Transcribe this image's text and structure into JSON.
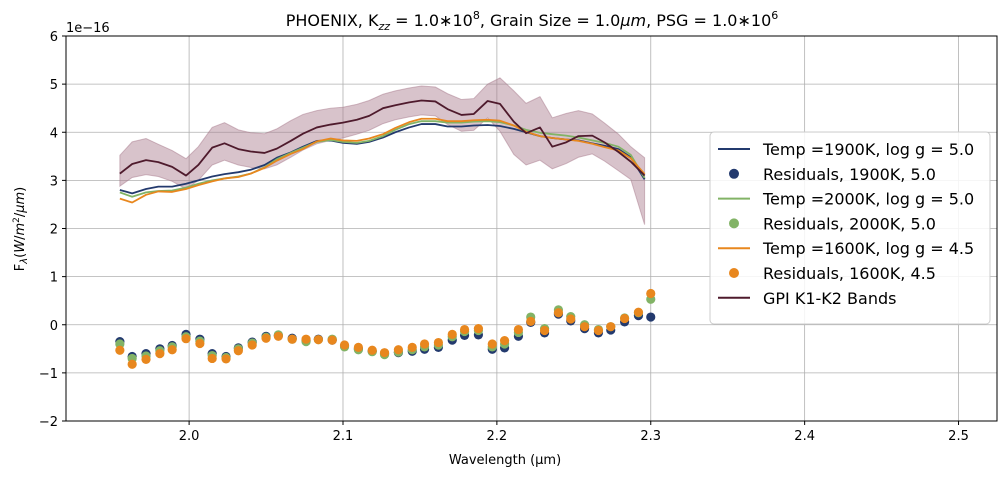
{
  "chart_data": {
    "type": "line",
    "title": "PHOENIX, K_zz = 1.0*10^8, Grain Size = 1.0μm,  PSG = 1.0*10^6",
    "title_parts": {
      "prefix": "PHOENIX, K",
      "kzz_sub": "zz",
      "kzz_value": " = 1.0",
      "kzz_times": "∗",
      "kzz_base": "10",
      "kzz_exp": "8",
      "grain_label": ", Grain Size = 1.0",
      "grain_unit": "μm",
      "psg_label": ",  PSG = 1.0",
      "psg_times": "∗",
      "psg_base": "10",
      "psg_exp": "6"
    },
    "xlabel": "Wavelength (μm)",
    "ylabel": "F_λ(W/m²/μm)",
    "ylabel_parts": {
      "base": "F",
      "sub": "λ",
      "open": "(",
      "w": "W",
      "slash1": "/",
      "m": "m",
      "sup": "2",
      "slash2": "/",
      "um": "μm",
      "close": ")"
    },
    "offset_text": "1e−16",
    "xlim": [
      1.92,
      2.525
    ],
    "ylim": [
      -2,
      6
    ],
    "xticks": [
      2.0,
      2.1,
      2.2,
      2.3,
      2.4,
      2.5
    ],
    "xtick_labels": [
      "2.0",
      "2.1",
      "2.2",
      "2.3",
      "2.4",
      "2.5"
    ],
    "yticks": [
      -2,
      -1,
      0,
      1,
      2,
      3,
      4,
      5,
      6
    ],
    "ytick_labels": [
      "−2",
      "−1",
      "0",
      "1",
      "2",
      "3",
      "4",
      "5",
      "6"
    ],
    "grid": true,
    "legend_position": "center-right",
    "x": [
      1.955,
      1.963,
      1.972,
      1.98,
      1.989,
      1.998,
      2.006,
      2.015,
      2.023,
      2.032,
      2.04,
      2.049,
      2.057,
      2.066,
      2.074,
      2.083,
      2.092,
      2.1,
      2.109,
      2.117,
      2.126,
      2.134,
      2.143,
      2.151,
      2.16,
      2.168,
      2.177,
      2.185,
      2.194,
      2.202,
      2.211,
      2.219,
      2.228,
      2.236,
      2.245,
      2.253,
      2.262,
      2.27,
      2.279,
      2.287,
      2.296
    ],
    "residual_x": [
      1.955,
      1.963,
      1.972,
      1.981,
      1.989,
      1.998,
      2.007,
      2.015,
      2.024,
      2.032,
      2.041,
      2.05,
      2.058,
      2.067,
      2.076,
      2.084,
      2.093,
      2.101,
      2.11,
      2.119,
      2.127,
      2.136,
      2.145,
      2.153,
      2.162,
      2.171,
      2.179,
      2.188,
      2.197,
      2.205,
      2.214,
      2.222,
      2.231,
      2.24,
      2.248,
      2.257,
      2.266,
      2.274,
      2.283,
      2.292,
      2.3
    ],
    "series": [
      {
        "name": "Temp =1900K, log g = 5.0",
        "kind": "line",
        "color": "#233a6e",
        "values": [
          2.8,
          2.73,
          2.82,
          2.87,
          2.87,
          2.93,
          3.0,
          3.08,
          3.13,
          3.17,
          3.22,
          3.32,
          3.47,
          3.58,
          3.7,
          3.82,
          3.83,
          3.78,
          3.76,
          3.8,
          3.89,
          4.0,
          4.1,
          4.17,
          4.17,
          4.12,
          4.12,
          4.14,
          4.15,
          4.13,
          4.07,
          4.0,
          3.92,
          3.88,
          3.85,
          3.83,
          3.77,
          3.72,
          3.65,
          3.48,
          3.02
        ]
      },
      {
        "name": "Residuals, 1900K, 5.0",
        "kind": "scatter",
        "color": "#233a6e",
        "values": [
          -0.35,
          -0.66,
          -0.6,
          -0.5,
          -0.43,
          -0.2,
          -0.3,
          -0.6,
          -0.66,
          -0.48,
          -0.36,
          -0.24,
          -0.22,
          -0.28,
          -0.33,
          -0.3,
          -0.32,
          -0.44,
          -0.5,
          -0.55,
          -0.6,
          -0.58,
          -0.55,
          -0.51,
          -0.47,
          -0.32,
          -0.22,
          -0.21,
          -0.51,
          -0.48,
          -0.24,
          0.05,
          -0.17,
          0.22,
          0.08,
          -0.08,
          -0.17,
          -0.11,
          0.06,
          0.19,
          0.16
        ]
      },
      {
        "name": "Temp =2000K, log g = 5.0",
        "kind": "line",
        "color": "#82b366",
        "values": [
          2.75,
          2.66,
          2.75,
          2.78,
          2.79,
          2.85,
          2.93,
          3.0,
          3.04,
          3.08,
          3.14,
          3.27,
          3.44,
          3.57,
          3.68,
          3.8,
          3.84,
          3.8,
          3.78,
          3.82,
          3.92,
          4.05,
          4.17,
          4.23,
          4.23,
          4.2,
          4.2,
          4.22,
          4.23,
          4.21,
          4.14,
          4.05,
          3.99,
          3.96,
          3.93,
          3.89,
          3.83,
          3.78,
          3.7,
          3.53,
          3.05
        ]
      },
      {
        "name": "Residuals, 2000K, 5.0",
        "kind": "scatter",
        "color": "#82b366",
        "values": [
          -0.4,
          -0.7,
          -0.65,
          -0.54,
          -0.46,
          -0.25,
          -0.34,
          -0.64,
          -0.68,
          -0.5,
          -0.38,
          -0.26,
          -0.21,
          -0.3,
          -0.35,
          -0.31,
          -0.3,
          -0.46,
          -0.52,
          -0.56,
          -0.62,
          -0.57,
          -0.52,
          -0.46,
          -0.42,
          -0.25,
          -0.14,
          -0.12,
          -0.46,
          -0.4,
          -0.16,
          0.16,
          -0.08,
          0.31,
          0.17,
          0.0,
          -0.1,
          -0.04,
          0.14,
          0.25,
          0.53
        ]
      },
      {
        "name": "Temp =1600K, log g = 4.5",
        "kind": "line",
        "color": "#e8871e",
        "values": [
          2.62,
          2.54,
          2.7,
          2.77,
          2.76,
          2.82,
          2.9,
          2.98,
          3.04,
          3.07,
          3.14,
          3.26,
          3.41,
          3.55,
          3.65,
          3.81,
          3.87,
          3.83,
          3.82,
          3.87,
          3.96,
          4.09,
          4.21,
          4.28,
          4.28,
          4.23,
          4.23,
          4.25,
          4.26,
          4.24,
          4.14,
          4.01,
          3.92,
          3.88,
          3.85,
          3.82,
          3.76,
          3.69,
          3.62,
          3.46,
          3.13
        ]
      },
      {
        "name": "Residuals, 1600K, 4.5",
        "kind": "scatter",
        "color": "#e8871e",
        "values": [
          -0.53,
          -0.82,
          -0.72,
          -0.6,
          -0.52,
          -0.29,
          -0.39,
          -0.7,
          -0.71,
          -0.54,
          -0.42,
          -0.28,
          -0.24,
          -0.3,
          -0.3,
          -0.31,
          -0.32,
          -0.42,
          -0.47,
          -0.53,
          -0.58,
          -0.52,
          -0.47,
          -0.4,
          -0.37,
          -0.2,
          -0.1,
          -0.08,
          -0.4,
          -0.33,
          -0.1,
          0.07,
          -0.12,
          0.25,
          0.12,
          -0.04,
          -0.12,
          -0.04,
          0.13,
          0.26,
          0.65
        ]
      },
      {
        "name": "GPI K1-K2 Bands",
        "kind": "line",
        "color": "#4e1a2c",
        "values": [
          3.14,
          3.34,
          3.42,
          3.38,
          3.28,
          3.1,
          3.32,
          3.68,
          3.77,
          3.65,
          3.6,
          3.57,
          3.66,
          3.82,
          3.97,
          4.1,
          4.16,
          4.2,
          4.26,
          4.34,
          4.5,
          4.56,
          4.62,
          4.66,
          4.64,
          4.48,
          4.36,
          4.38,
          4.65,
          4.59,
          4.22,
          3.98,
          4.1,
          3.7,
          3.79,
          3.92,
          3.93,
          3.79,
          3.59,
          3.39,
          3.1
        ],
        "band_upper": [
          3.52,
          3.8,
          3.87,
          3.75,
          3.62,
          3.45,
          3.7,
          4.1,
          4.2,
          4.05,
          3.99,
          3.97,
          4.07,
          4.24,
          4.37,
          4.45,
          4.5,
          4.52,
          4.58,
          4.66,
          4.79,
          4.86,
          4.92,
          4.96,
          4.94,
          4.8,
          4.68,
          4.7,
          5.0,
          5.13,
          4.86,
          4.6,
          4.74,
          4.3,
          4.39,
          4.45,
          4.38,
          4.19,
          3.96,
          3.7,
          3.47
        ],
        "band_lower": [
          2.88,
          3.06,
          3.12,
          3.08,
          2.98,
          2.82,
          3.0,
          3.32,
          3.42,
          3.32,
          3.27,
          3.24,
          3.32,
          3.48,
          3.63,
          3.76,
          3.83,
          3.88,
          3.96,
          4.04,
          4.18,
          4.26,
          4.32,
          4.36,
          4.34,
          4.16,
          4.02,
          4.04,
          4.3,
          4.02,
          3.54,
          3.32,
          3.42,
          3.24,
          3.35,
          3.48,
          3.55,
          3.4,
          3.2,
          3.02,
          2.08
        ],
        "band_color": "#a87a8c"
      }
    ],
    "legend_entries": [
      {
        "label": "Temp =1900K, log g = 5.0",
        "marker": "line",
        "color": "#233a6e"
      },
      {
        "label": "Residuals, 1900K, 5.0",
        "marker": "dot",
        "color": "#233a6e"
      },
      {
        "label": "Temp =2000K, log g = 5.0",
        "marker": "line",
        "color": "#82b366"
      },
      {
        "label": "Residuals, 2000K, 5.0",
        "marker": "dot",
        "color": "#82b366"
      },
      {
        "label": "Temp =1600K, log g = 4.5",
        "marker": "line",
        "color": "#e8871e"
      },
      {
        "label": "Residuals, 1600K, 4.5",
        "marker": "dot",
        "color": "#e8871e"
      },
      {
        "label": "GPI K1-K2 Bands",
        "marker": "line",
        "color": "#4e1a2c"
      }
    ]
  }
}
